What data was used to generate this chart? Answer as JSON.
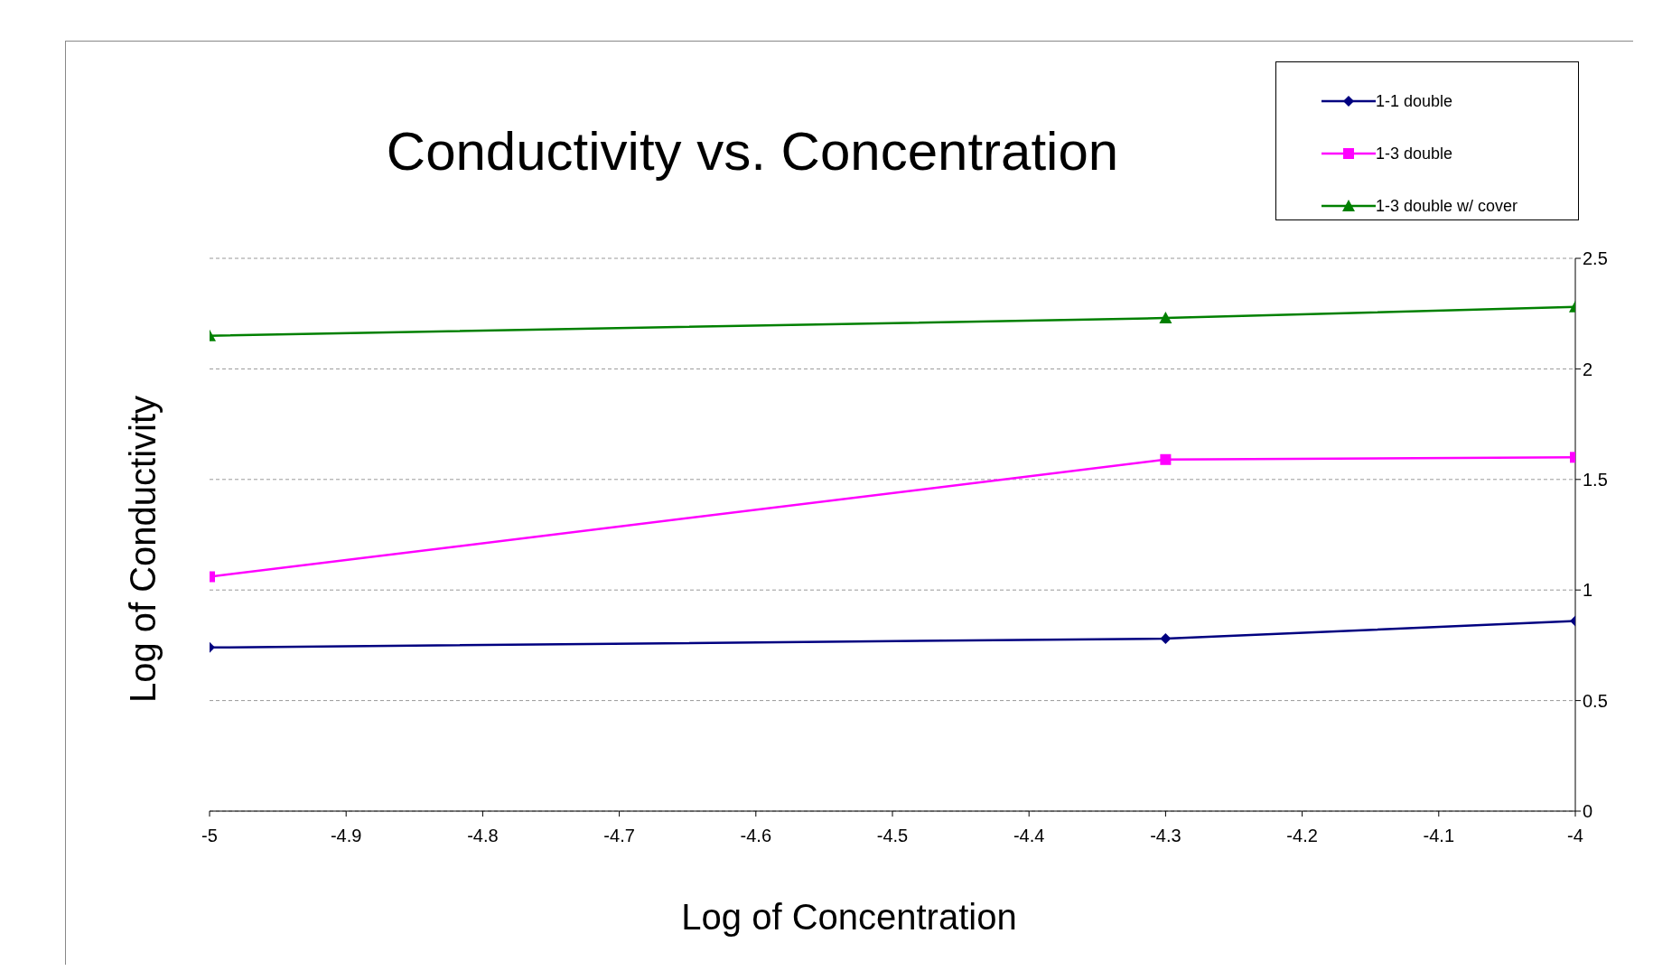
{
  "chart_data": {
    "type": "line",
    "title": "Conductivity vs. Concentration",
    "xlabel": "Log of Concentration",
    "ylabel": "Log of Conductivity",
    "x": [
      -5,
      -4.3,
      -4
    ],
    "series": [
      {
        "name": "1-1 double",
        "color": "#000080",
        "marker": "diamond",
        "values": [
          0.74,
          0.78,
          0.86
        ]
      },
      {
        "name": "1-3 double",
        "color": "#ff00ff",
        "marker": "square",
        "values": [
          1.06,
          1.59,
          1.6
        ]
      },
      {
        "name": "1-3 double w/ cover",
        "color": "#008000",
        "marker": "triangle",
        "values": [
          2.15,
          2.23,
          2.28
        ]
      }
    ],
    "xlim": [
      -5,
      -4
    ],
    "xticks": [
      -5,
      -4.9,
      -4.8,
      -4.7,
      -4.6,
      -4.5,
      -4.4,
      -4.3,
      -4.2,
      -4.1,
      -4
    ],
    "ylim": [
      0,
      2.5
    ],
    "yticks": [
      0,
      0.5,
      1,
      1.5,
      2,
      2.5
    ],
    "grid": "y",
    "legend": "top right",
    "line_style": "solid"
  }
}
